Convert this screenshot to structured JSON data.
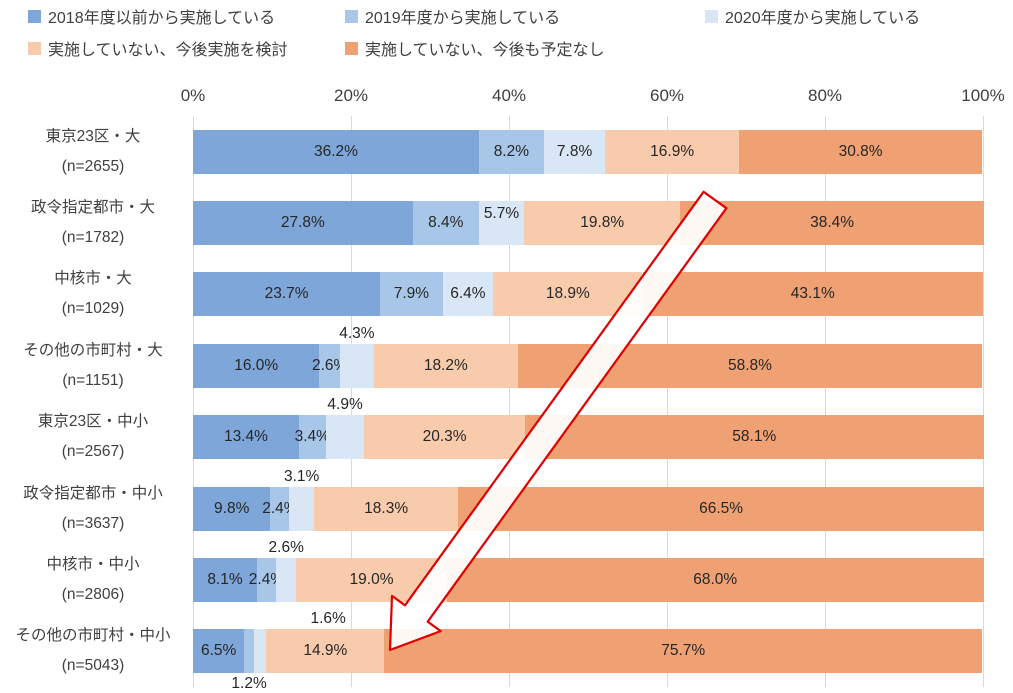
{
  "chart_data": {
    "type": "bar",
    "orientation": "horizontal",
    "stacked": true,
    "unit": "%",
    "xlim": [
      0,
      100
    ],
    "x_ticks": [
      "0%",
      "20%",
      "40%",
      "60%",
      "80%",
      "100%"
    ],
    "grid": true,
    "legend_position": "top",
    "categories": [
      {
        "name": "東京23区・大",
        "n": "(n=2655)"
      },
      {
        "name": "政令指定都市・大",
        "n": "(n=1782)"
      },
      {
        "name": "中核市・大",
        "n": "(n=1029)"
      },
      {
        "name": "その他の市町村・大",
        "n": "(n=1151)"
      },
      {
        "name": "東京23区・中小",
        "n": "(n=2567)"
      },
      {
        "name": "政令指定都市・中小",
        "n": "(n=3637)"
      },
      {
        "name": "中核市・中小",
        "n": "(n=2806)"
      },
      {
        "name": "その他の市町村・中小",
        "n": "(n=5043)"
      }
    ],
    "series": [
      {
        "name": "2018年度以前から実施している",
        "color": "#7ea6d9",
        "values": [
          36.2,
          27.8,
          23.7,
          16.0,
          13.4,
          9.8,
          8.1,
          6.5
        ]
      },
      {
        "name": "2019年度から実施している",
        "color": "#a8c7e8",
        "values": [
          8.2,
          8.4,
          7.9,
          2.6,
          3.4,
          2.4,
          2.4,
          1.2
        ]
      },
      {
        "name": "2020年度から実施している",
        "color": "#d9e6f5",
        "values": [
          7.8,
          5.7,
          6.4,
          4.3,
          4.9,
          3.1,
          2.6,
          1.6
        ]
      },
      {
        "name": "実施していない、今後実施を検討",
        "color": "#f8cbac",
        "values": [
          16.9,
          19.8,
          18.9,
          18.2,
          20.3,
          18.3,
          19.0,
          14.9
        ]
      },
      {
        "name": "実施していない、今後も予定なし",
        "color": "#efa173",
        "values": [
          30.8,
          38.4,
          43.1,
          58.8,
          58.1,
          66.5,
          68.0,
          75.7
        ]
      }
    ],
    "label_positions": [
      [
        "in",
        "in",
        "in",
        "in",
        "in"
      ],
      [
        "in",
        "in",
        "raised",
        "in",
        "in"
      ],
      [
        "in",
        "in",
        "in",
        "in",
        "in"
      ],
      [
        "in",
        "in",
        "above",
        "in",
        "in"
      ],
      [
        "in",
        "in",
        "above",
        "in",
        "in"
      ],
      [
        "in",
        "in",
        "above",
        "in",
        "in"
      ],
      [
        "in",
        "in",
        "above",
        "in",
        "in"
      ],
      [
        "in",
        "below",
        "above-offset",
        "in",
        "in"
      ]
    ],
    "annotation": {
      "type": "arrow",
      "description": "block arrow pointing from upper right to lower left across the bars",
      "stroke": "#e00000",
      "fill": "#ffffff"
    }
  }
}
